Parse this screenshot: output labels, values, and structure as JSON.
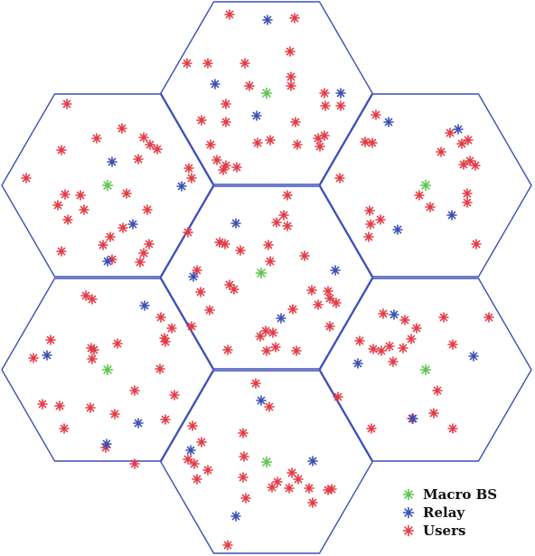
{
  "legend": {
    "macro": "Macro BS",
    "relay": "Relay",
    "users": "Users"
  },
  "colors": {
    "cell_edge": "#3f4fb8",
    "macro": "#5ec44f",
    "relay": "#3b4fb3",
    "users": "#e53a45"
  },
  "icons": {
    "macro": "asterisk-marker",
    "relay": "asterisk-marker",
    "users": "asterisk-marker"
  }
}
